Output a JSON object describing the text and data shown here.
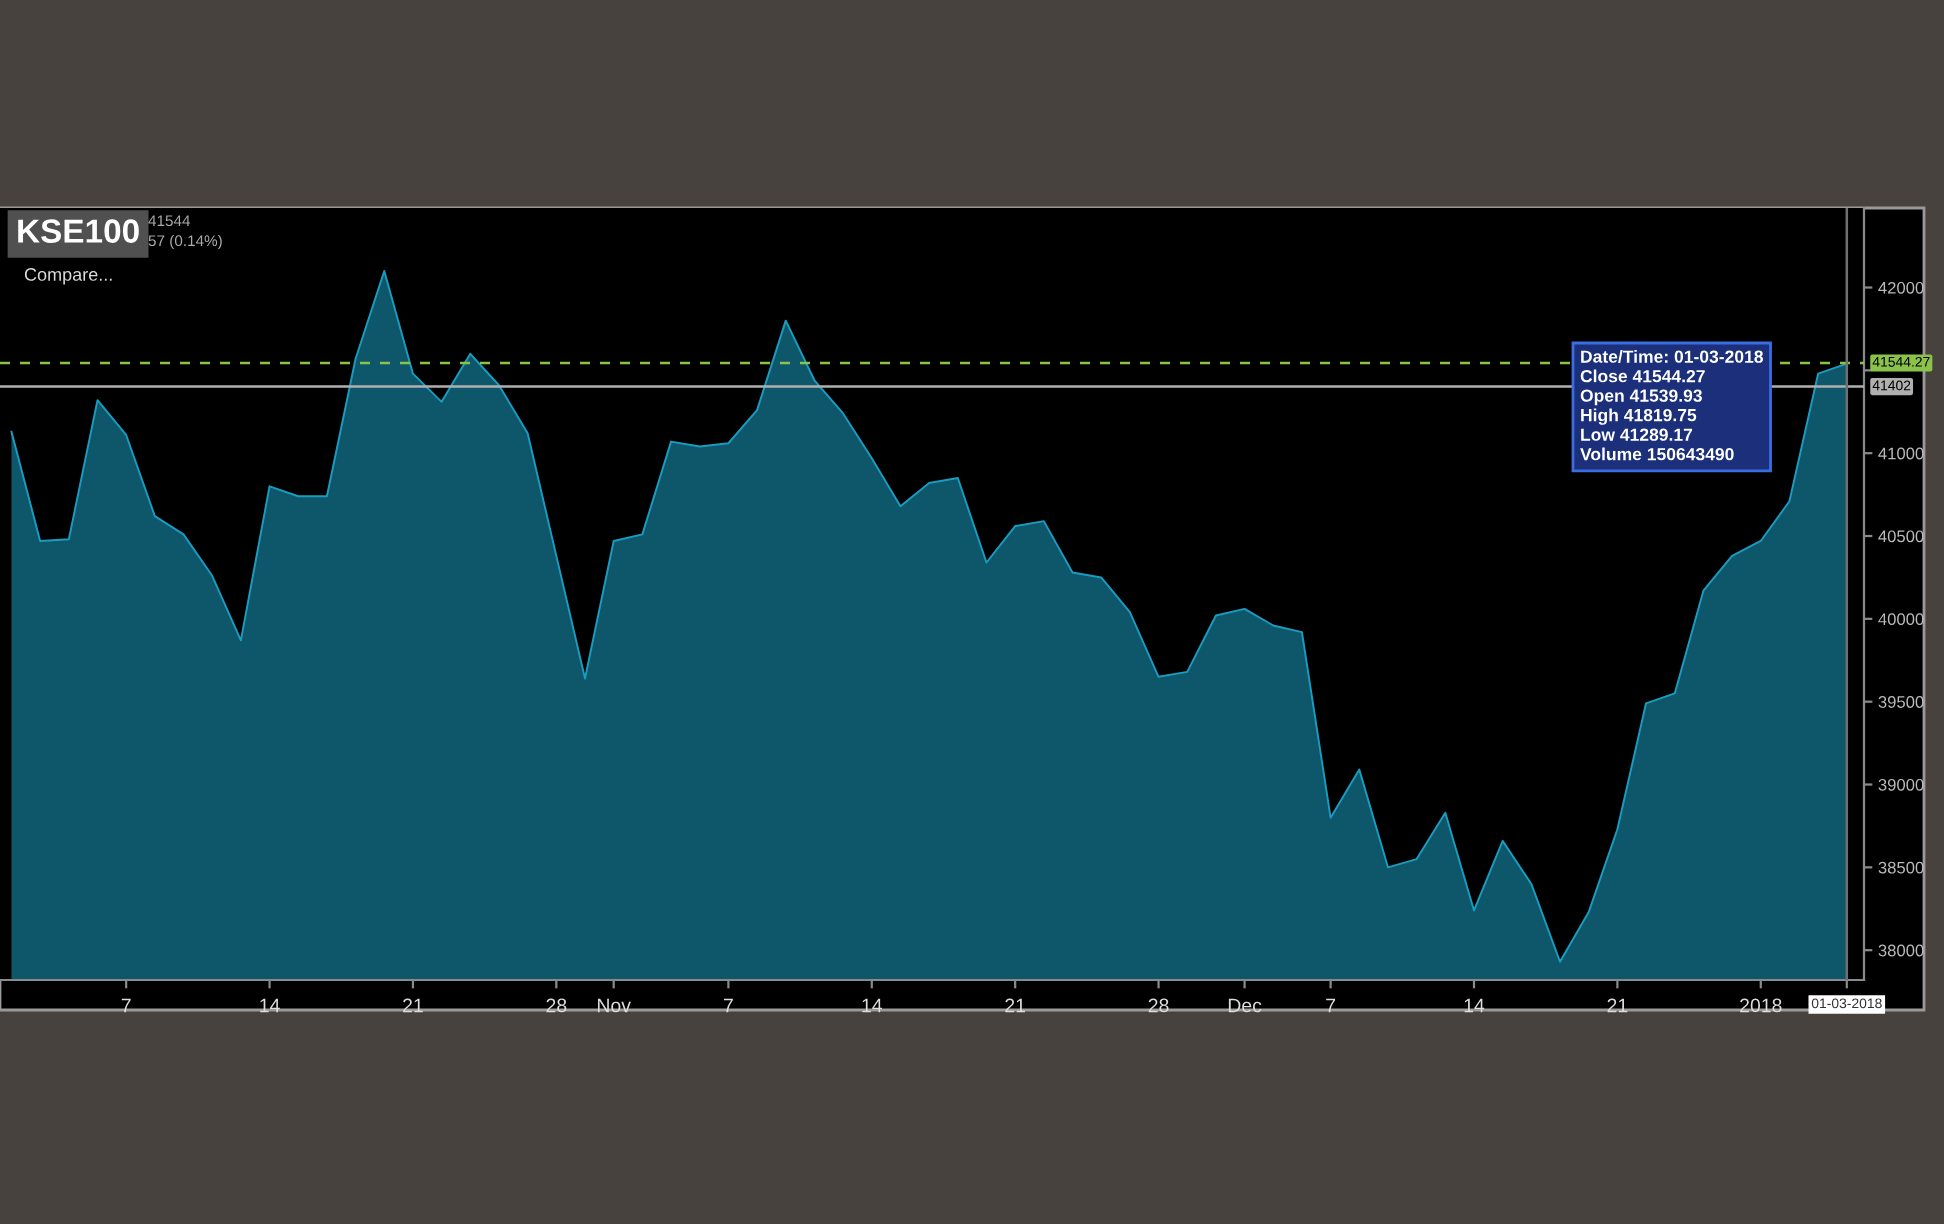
{
  "chart_data": {
    "type": "area",
    "title": "KSE100",
    "categories": [
      null,
      null,
      null,
      null,
      "7",
      null,
      null,
      null,
      null,
      "14",
      null,
      null,
      null,
      null,
      "21",
      null,
      null,
      null,
      null,
      "28",
      null,
      "Nov",
      null,
      null,
      null,
      "7",
      null,
      null,
      null,
      null,
      "14",
      null,
      null,
      null,
      null,
      "21",
      null,
      null,
      null,
      null,
      "28",
      null,
      null,
      "Dec",
      null,
      null,
      "7",
      null,
      null,
      null,
      null,
      "14",
      null,
      null,
      null,
      null,
      "21",
      null,
      null,
      null,
      null,
      "2018",
      null,
      null,
      "01-03-2018"
    ],
    "series": [
      {
        "color": "#1a9cc0",
        "values": [
          41130,
          40470,
          40480,
          41320,
          41110,
          40620,
          40510,
          40260,
          39870,
          40800,
          40740,
          40740,
          41570,
          42100,
          41480,
          41310,
          41600,
          41410,
          41120,
          40380,
          39640,
          40470,
          40510,
          41070,
          41040,
          41060,
          41260,
          41800,
          41440,
          41240,
          40970,
          40680,
          40820,
          40850,
          40340,
          40560,
          40590,
          40280,
          40250,
          40040,
          39650,
          39680,
          40020,
          40060,
          39960,
          39920,
          38800,
          39090,
          38500,
          38550,
          38830,
          38240,
          38660,
          38400,
          37930,
          38230,
          38730,
          39490,
          39550,
          40170,
          40380,
          40470,
          40710,
          41480,
          41540
        ]
      }
    ],
    "ylim": [
      37820,
      42480
    ],
    "yticks": [
      38000,
      38500,
      39000,
      39500,
      40000,
      40500,
      41000,
      {
        "value": 41500,
        "label": null
      },
      42000
    ],
    "ref_lines": [
      {
        "axis": "y",
        "value": 41544.27,
        "label": "41544.27",
        "color": "#8bc34a",
        "line_style": "dashed"
      },
      {
        "axis": "y",
        "value": 41402,
        "label": "41402",
        "color": "#b0b0b0",
        "line_style": "solid"
      },
      {
        "axis": "x",
        "value": "01-03-2018",
        "color": "#707070",
        "line_style": "solid"
      }
    ],
    "annotations": [
      "41544",
      "57 (0.14%)",
      "Compare...",
      "Date/Time: 01-03-2018\nClose 41544.27\nOpen 41539.93\nHigh 41819.75\nLow 41289.17\nVolume 150643490"
    ],
    "grid": false,
    "legend": false
  }
}
